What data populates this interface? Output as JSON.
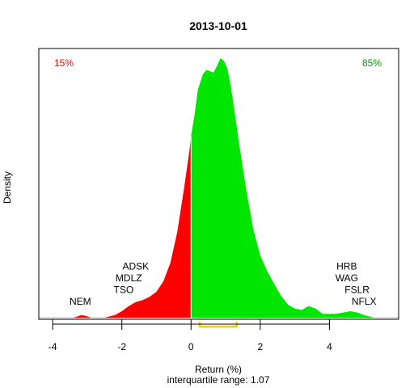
{
  "chart_data": {
    "type": "area",
    "title": "2013-10-01",
    "xlabel": "Return (%)",
    "ylabel": "Density",
    "subtitle": "interquartile range: 1.07",
    "xlim": [
      -4.4,
      6.0
    ],
    "ylim": [
      0,
      1.0
    ],
    "x_ticks": [
      -4,
      -2,
      0,
      2,
      4
    ],
    "x_tick_labels": [
      "-4",
      "-2",
      "0",
      "2",
      "4"
    ],
    "split_at": 0,
    "left_pct_label": "15%",
    "right_pct_label": "85%",
    "colors": {
      "negative": "#ff0000",
      "positive": "#00e600",
      "iqr": "#ffcc00",
      "baseline": "#bebebe"
    },
    "density": {
      "x": [
        -3.4,
        -3.3,
        -3.2,
        -3.1,
        -3.0,
        -2.9,
        -2.5,
        -2.2,
        -2.0,
        -1.8,
        -1.6,
        -1.4,
        -1.2,
        -1.0,
        -0.8,
        -0.6,
        -0.4,
        -0.2,
        -0.05,
        0.0,
        0.1,
        0.2,
        0.35,
        0.45,
        0.55,
        0.65,
        0.75,
        0.85,
        0.95,
        1.05,
        1.15,
        1.25,
        1.4,
        1.6,
        1.8,
        2.0,
        2.2,
        2.4,
        2.6,
        2.8,
        3.0,
        3.2,
        3.4,
        3.6,
        3.8,
        4.0,
        4.2,
        4.4,
        4.6,
        4.8,
        5.0,
        5.2,
        5.3
      ],
      "y": [
        0,
        0.004,
        0.009,
        0.009,
        0.005,
        0,
        0,
        0.01,
        0.025,
        0.045,
        0.06,
        0.068,
        0.08,
        0.1,
        0.14,
        0.21,
        0.33,
        0.5,
        0.64,
        0.7,
        0.78,
        0.88,
        0.94,
        0.955,
        0.95,
        0.945,
        0.97,
        1.0,
        0.99,
        0.96,
        0.89,
        0.8,
        0.66,
        0.49,
        0.34,
        0.24,
        0.18,
        0.13,
        0.085,
        0.05,
        0.035,
        0.03,
        0.045,
        0.035,
        0.015,
        0.015,
        0.015,
        0.02,
        0.025,
        0.02,
        0.01,
        0.003,
        0
      ]
    },
    "iqr": [
      0.25,
      1.32
    ],
    "labels": [
      {
        "text": "NEM",
        "x": -3.2,
        "y": 0.05
      },
      {
        "text": "TSO",
        "x": -1.95,
        "y": 0.095
      },
      {
        "text": "MDLZ",
        "x": -1.8,
        "y": 0.14
      },
      {
        "text": "ADSK",
        "x": -1.6,
        "y": 0.185
      },
      {
        "text": "HRB",
        "x": 4.5,
        "y": 0.185
      },
      {
        "text": "WAG",
        "x": 4.5,
        "y": 0.14
      },
      {
        "text": "FSLR",
        "x": 4.8,
        "y": 0.095
      },
      {
        "text": "NFLX",
        "x": 5.0,
        "y": 0.05
      }
    ]
  }
}
